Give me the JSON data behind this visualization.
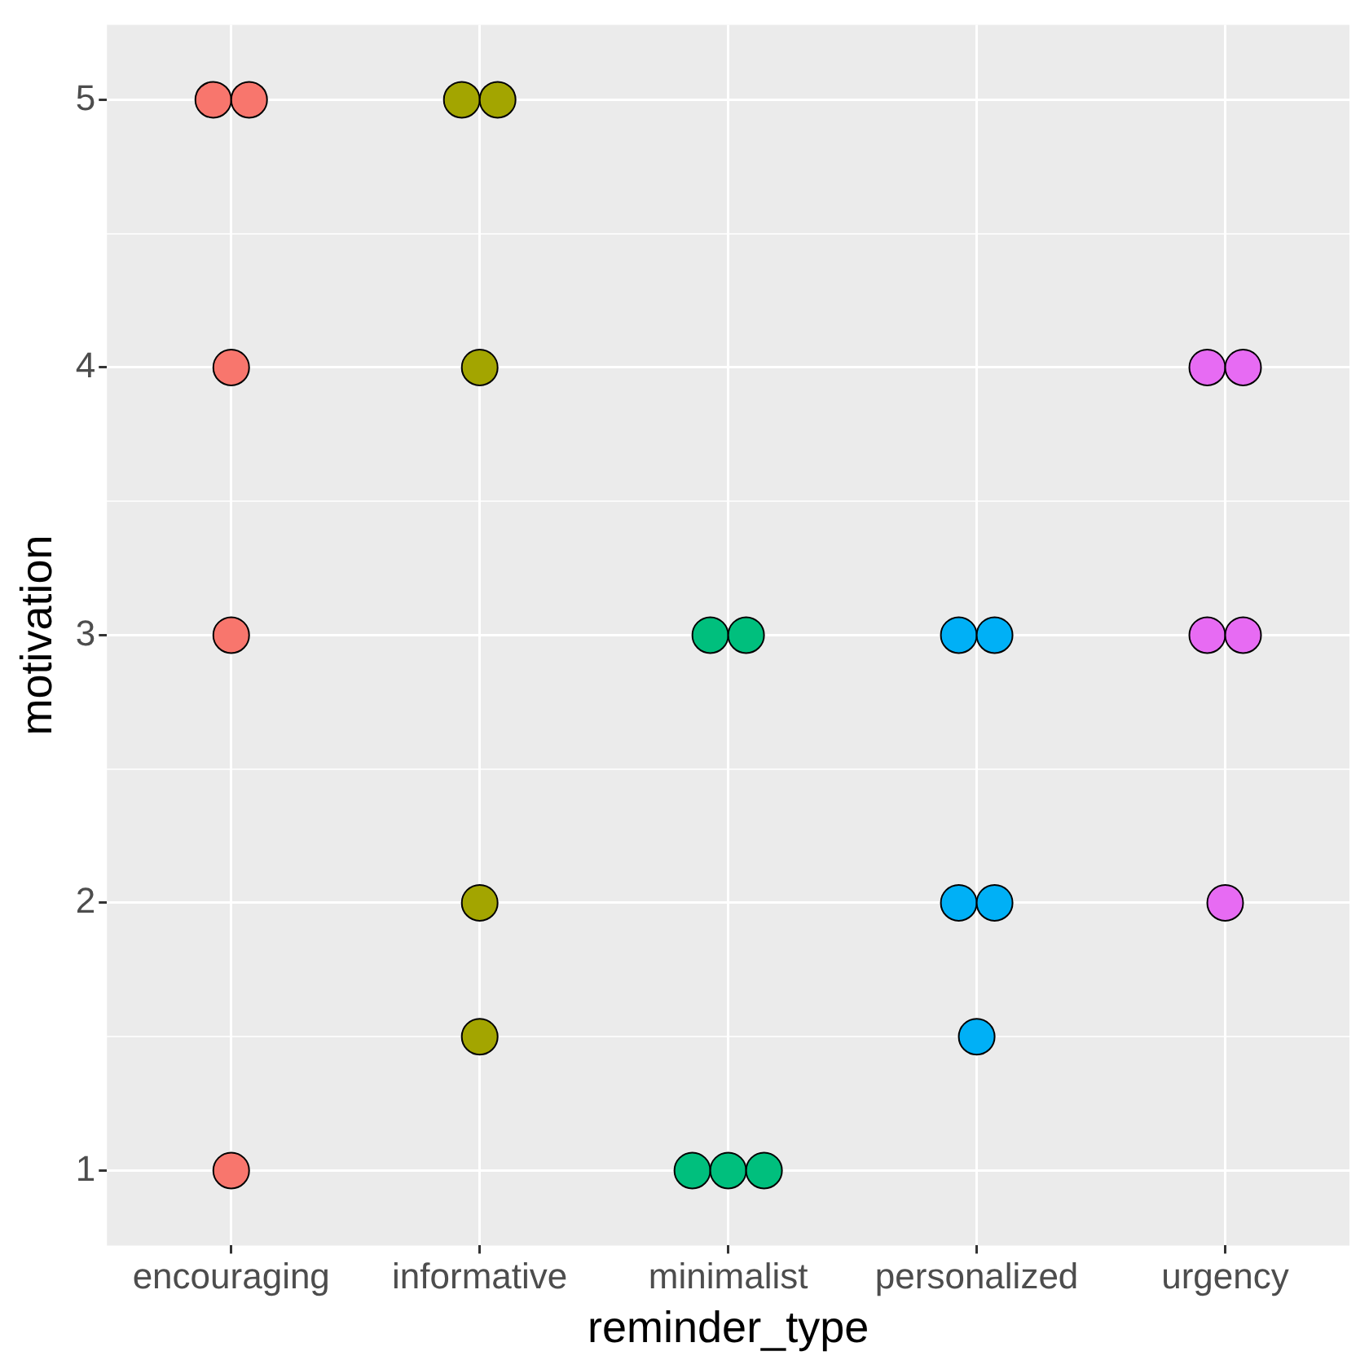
{
  "chart_data": {
    "type": "scatter",
    "xlabel": "reminder_type",
    "ylabel": "motivation",
    "categories": [
      "encouraging",
      "informative",
      "minimalist",
      "personalized",
      "urgency"
    ],
    "series": [
      {
        "color": "#f8766d",
        "x": [
          "encouraging",
          "encouraging",
          "encouraging",
          "encouraging",
          "encouraging"
        ],
        "values": [
          5,
          5,
          4,
          3,
          1
        ]
      },
      {
        "color": "#a3a500",
        "x": [
          "informative",
          "informative",
          "informative",
          "informative",
          "informative"
        ],
        "values": [
          5,
          5,
          4,
          2,
          1.5
        ]
      },
      {
        "color": "#00bf7d",
        "x": [
          "minimalist",
          "minimalist",
          "minimalist",
          "minimalist",
          "minimalist"
        ],
        "values": [
          3,
          3,
          1,
          1,
          1
        ]
      },
      {
        "color": "#00b0f6",
        "x": [
          "personalized",
          "personalized",
          "personalized",
          "personalized",
          "personalized"
        ],
        "values": [
          3,
          3,
          2,
          2,
          1.5
        ]
      },
      {
        "color": "#e76bf3",
        "x": [
          "urgency",
          "urgency",
          "urgency",
          "urgency",
          "urgency"
        ],
        "values": [
          4,
          4,
          3,
          3,
          2
        ]
      }
    ],
    "ylim": [
      0.72,
      5.28
    ],
    "yticks": [
      1,
      {
        "value": 1.5,
        "label": null
      },
      2,
      {
        "value": 2.5,
        "label": null
      },
      3,
      {
        "value": 3.5,
        "label": null
      },
      4,
      {
        "value": 4.5,
        "label": null
      },
      5
    ],
    "grid": true,
    "legend": false,
    "marker": "circle"
  }
}
